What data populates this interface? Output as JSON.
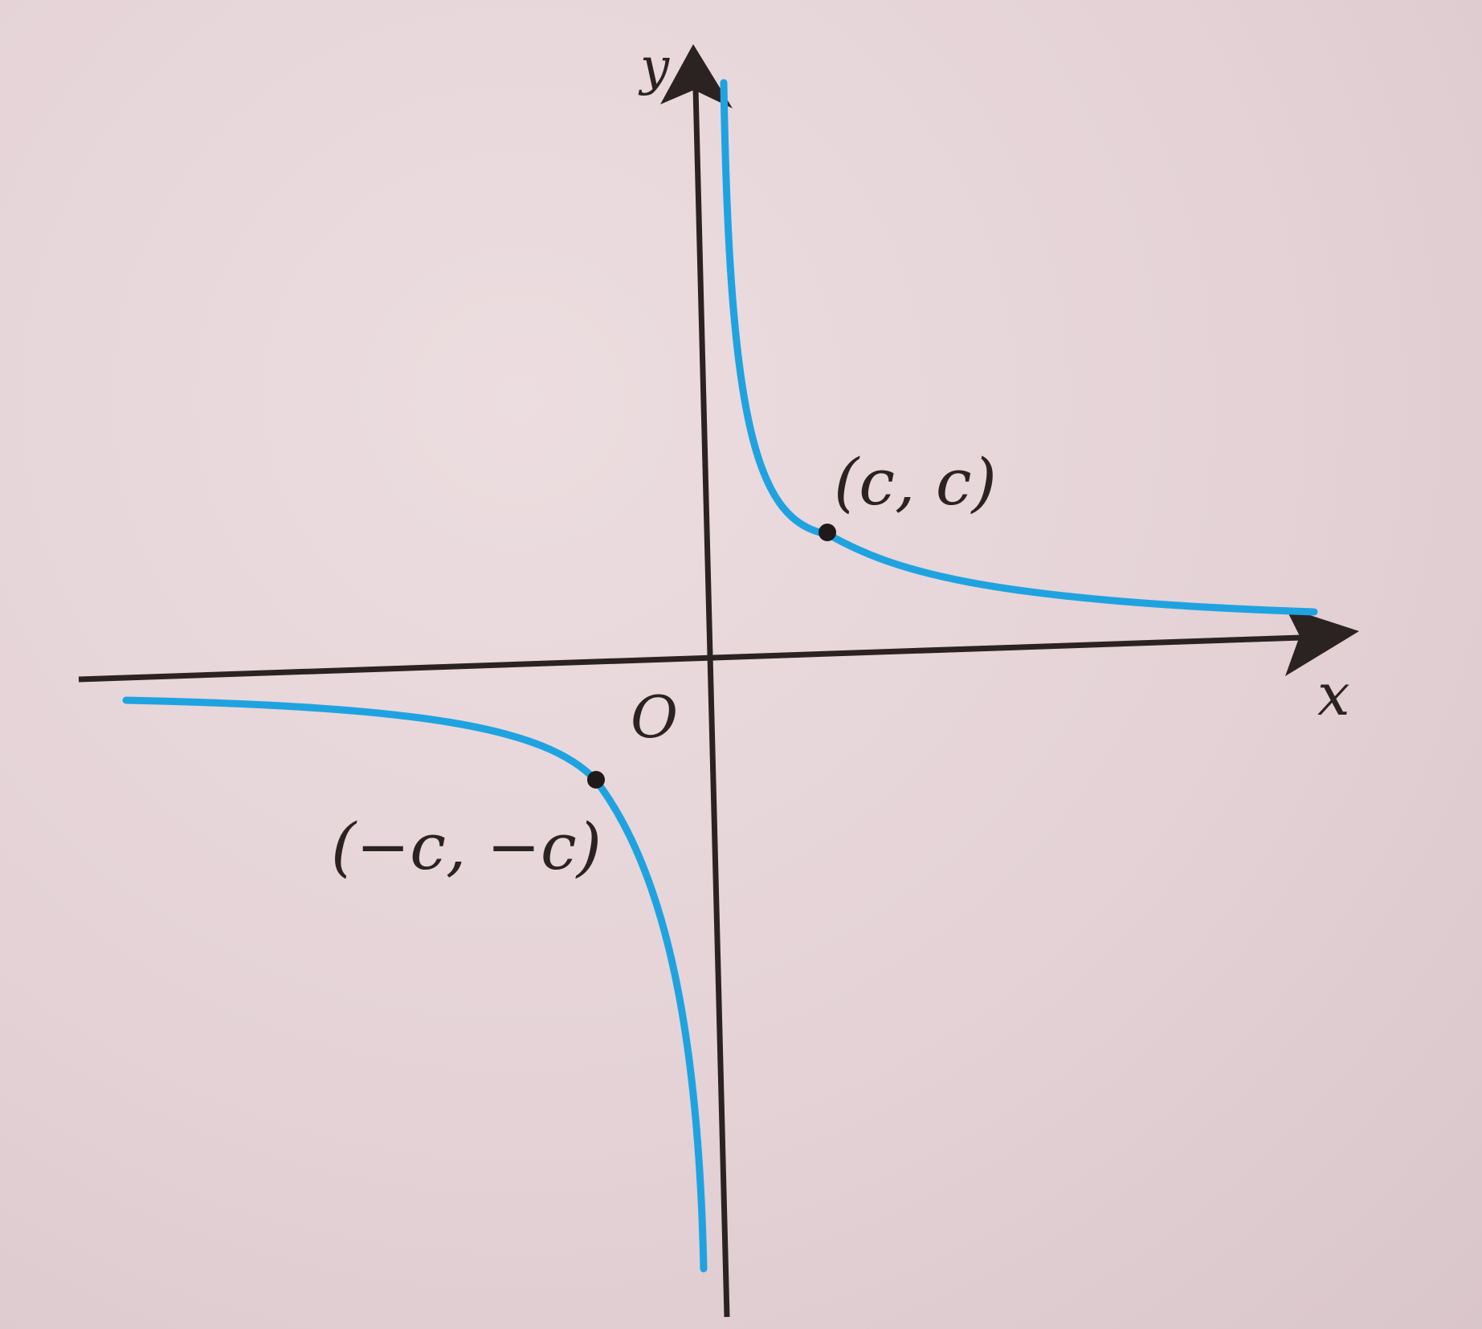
{
  "diagram": {
    "function": "y = c^2 / x",
    "axes": {
      "x_label": "x",
      "y_label": "y",
      "origin_label": "O"
    },
    "points": [
      {
        "label": "(c, c)",
        "x": 1,
        "y": 1
      },
      {
        "label": "(−c, −c)",
        "x": -1,
        "y": -1
      }
    ],
    "colors": {
      "curve": "#1fa3e0",
      "axes": "#2b2321",
      "points": "#1e1a19",
      "background": "#e6d5d8"
    }
  }
}
